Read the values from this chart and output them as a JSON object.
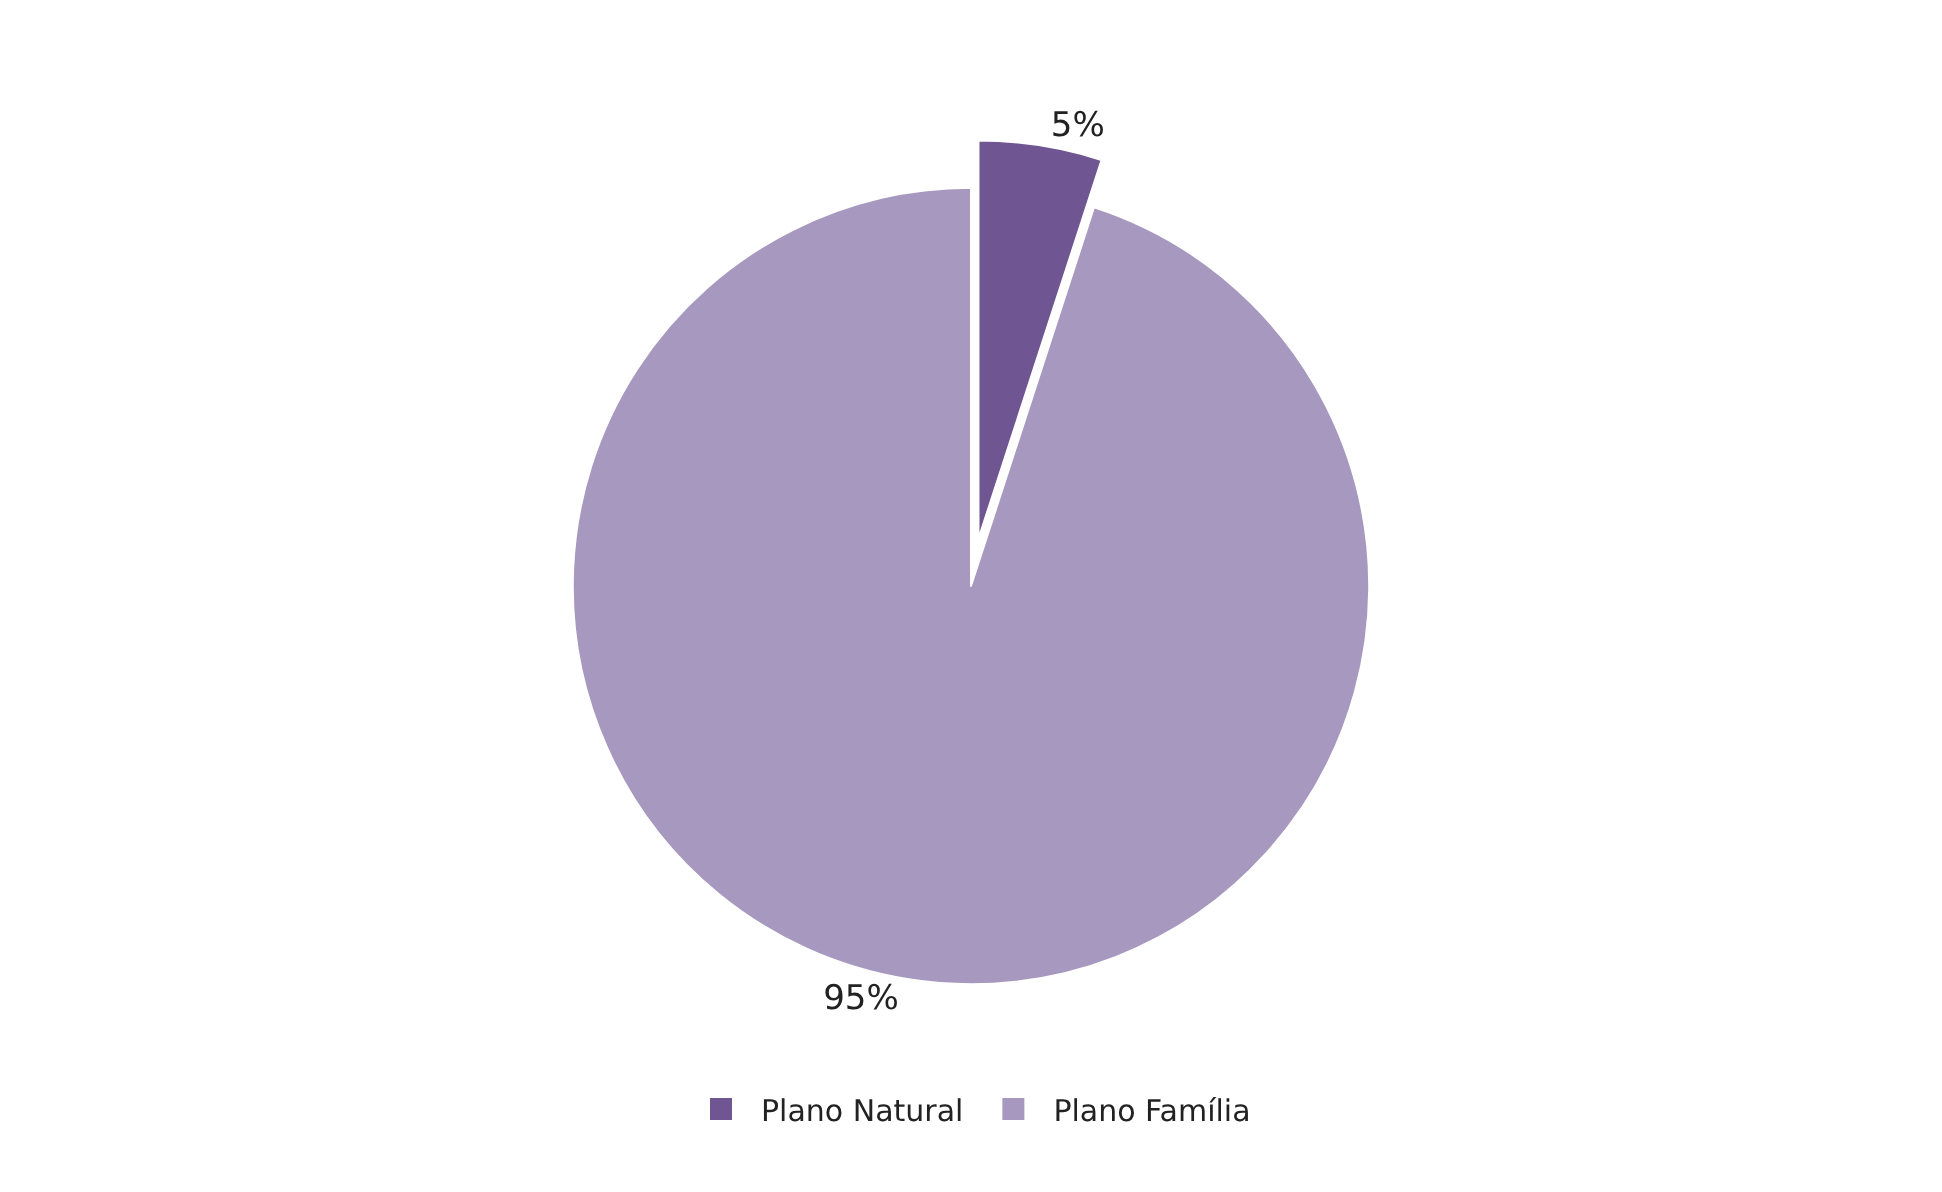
{
  "chart_data": {
    "type": "pie",
    "categories": [
      "Plano Natural",
      "Plano Família"
    ],
    "values": [
      5,
      95
    ],
    "colors": [
      "#6f5592",
      "#a698bf"
    ],
    "value_labels": [
      "5%",
      "95%"
    ],
    "legend": "bottom"
  }
}
